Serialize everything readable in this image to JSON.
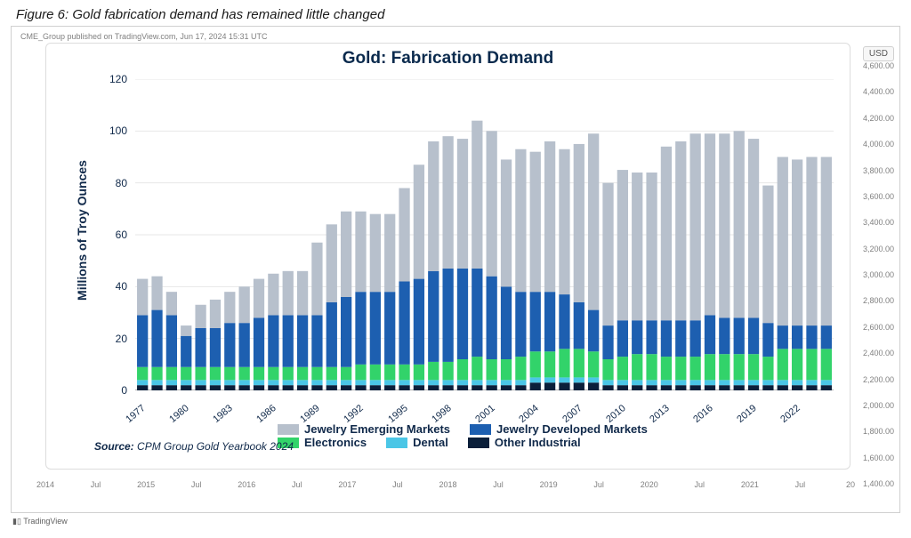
{
  "figure_caption": "Figure 6: Gold fabrication demand has remained little changed",
  "publish_note": "CME_Group published on TradingView.com, Jun 17, 2024 15:31 UTC",
  "chart": {
    "type": "stacked-bar",
    "title": "Gold: Fabrication Demand",
    "title_fontsize": 19,
    "title_color": "#0a2a4d",
    "y_axis": {
      "label": "Millions of Troy Ounces",
      "min": 0,
      "max": 120,
      "tick_step": 20,
      "ticks": [
        0,
        20,
        40,
        60,
        80,
        100,
        120
      ],
      "label_color": "#10294a",
      "label_fontsize": 14,
      "tick_fontsize": 12
    },
    "x_axis": {
      "years": [
        1977,
        1978,
        1979,
        1980,
        1981,
        1982,
        1983,
        1984,
        1985,
        1986,
        1987,
        1988,
        1989,
        1990,
        1991,
        1992,
        1993,
        1994,
        1995,
        1996,
        1997,
        1998,
        1999,
        2000,
        2001,
        2002,
        2003,
        2004,
        2005,
        2006,
        2007,
        2008,
        2009,
        2010,
        2011,
        2012,
        2013,
        2014,
        2015,
        2016,
        2017,
        2018,
        2019,
        2020,
        2021,
        2022,
        2023,
        2024
      ],
      "tick_label_years": [
        1977,
        1980,
        1983,
        1986,
        1989,
        1992,
        1995,
        1998,
        2001,
        2004,
        2007,
        2010,
        2013,
        2016,
        2019,
        2022
      ],
      "tick_fontsize": 11,
      "tick_rotation_deg": -40
    },
    "series_order": [
      "other_industrial",
      "dental",
      "electronics",
      "jewelry_developed",
      "jewelry_emerging"
    ],
    "series": {
      "jewelry_emerging": {
        "label": "Jewelry Emerging Markets",
        "color": "#b7c0cc",
        "values": [
          14,
          13,
          9,
          4,
          9,
          11,
          12,
          14,
          15,
          16,
          17,
          17,
          28,
          30,
          33,
          31,
          30,
          30,
          36,
          44,
          50,
          51,
          50,
          57,
          56,
          49,
          55,
          54,
          58,
          56,
          61,
          68,
          55,
          58,
          57,
          57,
          67,
          69,
          72,
          70,
          71,
          72,
          69,
          53,
          65,
          64,
          65,
          65
        ]
      },
      "jewelry_developed": {
        "label": "Jewelry Developed Markets",
        "color": "#1d5fb0",
        "values": [
          20,
          22,
          20,
          12,
          15,
          15,
          17,
          17,
          19,
          20,
          20,
          20,
          20,
          25,
          27,
          28,
          28,
          28,
          32,
          33,
          35,
          36,
          35,
          34,
          32,
          28,
          25,
          23,
          23,
          21,
          18,
          16,
          13,
          14,
          13,
          13,
          14,
          14,
          14,
          15,
          14,
          14,
          14,
          13,
          9,
          9,
          9,
          9
        ]
      },
      "electronics": {
        "label": "Electronics",
        "color": "#32d36a",
        "values": [
          5,
          5,
          5,
          5,
          5,
          5,
          5,
          5,
          5,
          5,
          5,
          5,
          5,
          5,
          5,
          6,
          6,
          6,
          6,
          6,
          7,
          7,
          8,
          9,
          8,
          8,
          9,
          10,
          10,
          11,
          11,
          10,
          8,
          9,
          10,
          10,
          9,
          9,
          9,
          10,
          10,
          10,
          10,
          9,
          12,
          12,
          12,
          12
        ]
      },
      "dental": {
        "label": "Dental",
        "color": "#4bc6e6",
        "values": [
          2,
          2,
          2,
          2,
          2,
          2,
          2,
          2,
          2,
          2,
          2,
          2,
          2,
          2,
          2,
          2,
          2,
          2,
          2,
          2,
          2,
          2,
          2,
          2,
          2,
          2,
          2,
          2,
          2,
          2,
          2,
          2,
          2,
          2,
          2,
          2,
          2,
          2,
          2,
          2,
          2,
          2,
          2,
          2,
          2,
          2,
          2,
          2
        ]
      },
      "other_industrial": {
        "label": "Other Industrial",
        "color": "#0b1f3a",
        "values": [
          2,
          2,
          2,
          2,
          2,
          2,
          2,
          2,
          2,
          2,
          2,
          2,
          2,
          2,
          2,
          2,
          2,
          2,
          2,
          2,
          2,
          2,
          2,
          2,
          2,
          2,
          2,
          3,
          3,
          3,
          3,
          3,
          2,
          2,
          2,
          2,
          2,
          2,
          2,
          2,
          2,
          2,
          2,
          2,
          2,
          2,
          2,
          2
        ]
      }
    },
    "bar_gap_ratio": 0.25,
    "grid_color": "#e7e7e7",
    "baseline_color": "#666666",
    "background_color": "#ffffff"
  },
  "legend": {
    "fontsize": 13,
    "font_weight": "bold",
    "rows": [
      [
        "jewelry_emerging",
        "jewelry_developed"
      ],
      [
        "electronics",
        "dental",
        "other_industrial"
      ]
    ]
  },
  "source_note_label": "Source:",
  "source_note_value": "CPM Group Gold Yearbook 2024",
  "right_scale": {
    "unit_badge": "USD",
    "min": 1400,
    "max": 4600,
    "tick_step": 200,
    "tick_fontsize": 9,
    "tick_color": "#808080"
  },
  "outer_time_axis": {
    "ticks": [
      "2014",
      "Jul",
      "2015",
      "Jul",
      "2016",
      "Jul",
      "2017",
      "Jul",
      "2018",
      "Jul",
      "2019",
      "Jul",
      "2020",
      "Jul",
      "2021",
      "Jul",
      "20"
    ],
    "tick_fontsize": 9,
    "tick_color": "#808080"
  },
  "tv_credit": "TradingView",
  "card_border_color": "#dddddd",
  "outer_border_color": "#d0d0d0"
}
